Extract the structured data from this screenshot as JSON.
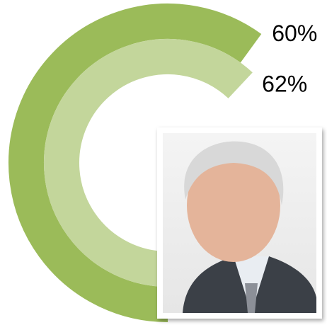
{
  "chart_data": {
    "type": "radial_bar",
    "values": [
      60,
      62
    ],
    "value_labels": [
      "60%",
      "62%"
    ],
    "colors": [
      "#9bbb59",
      "#c3d69b"
    ],
    "ylim": [
      0,
      100
    ]
  }
}
